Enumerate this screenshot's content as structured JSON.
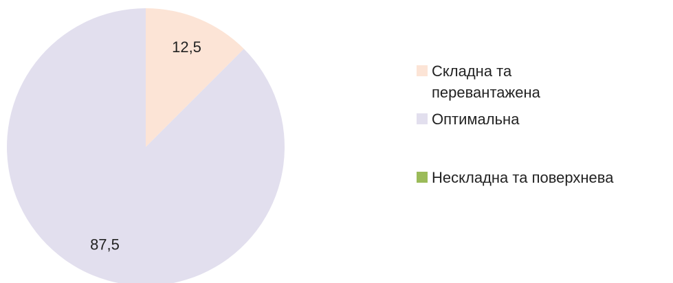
{
  "chart_data": {
    "type": "pie",
    "categories": [
      "Складна та перевантажена",
      "Оптимальна",
      "Нескладна та поверхнева"
    ],
    "values": [
      12.5,
      87.5,
      0
    ],
    "value_labels": [
      "12,5",
      "87,5",
      null
    ],
    "colors": [
      "#fce4d6",
      "#e2dfee",
      "#9bbb59"
    ],
    "legend": "right"
  }
}
